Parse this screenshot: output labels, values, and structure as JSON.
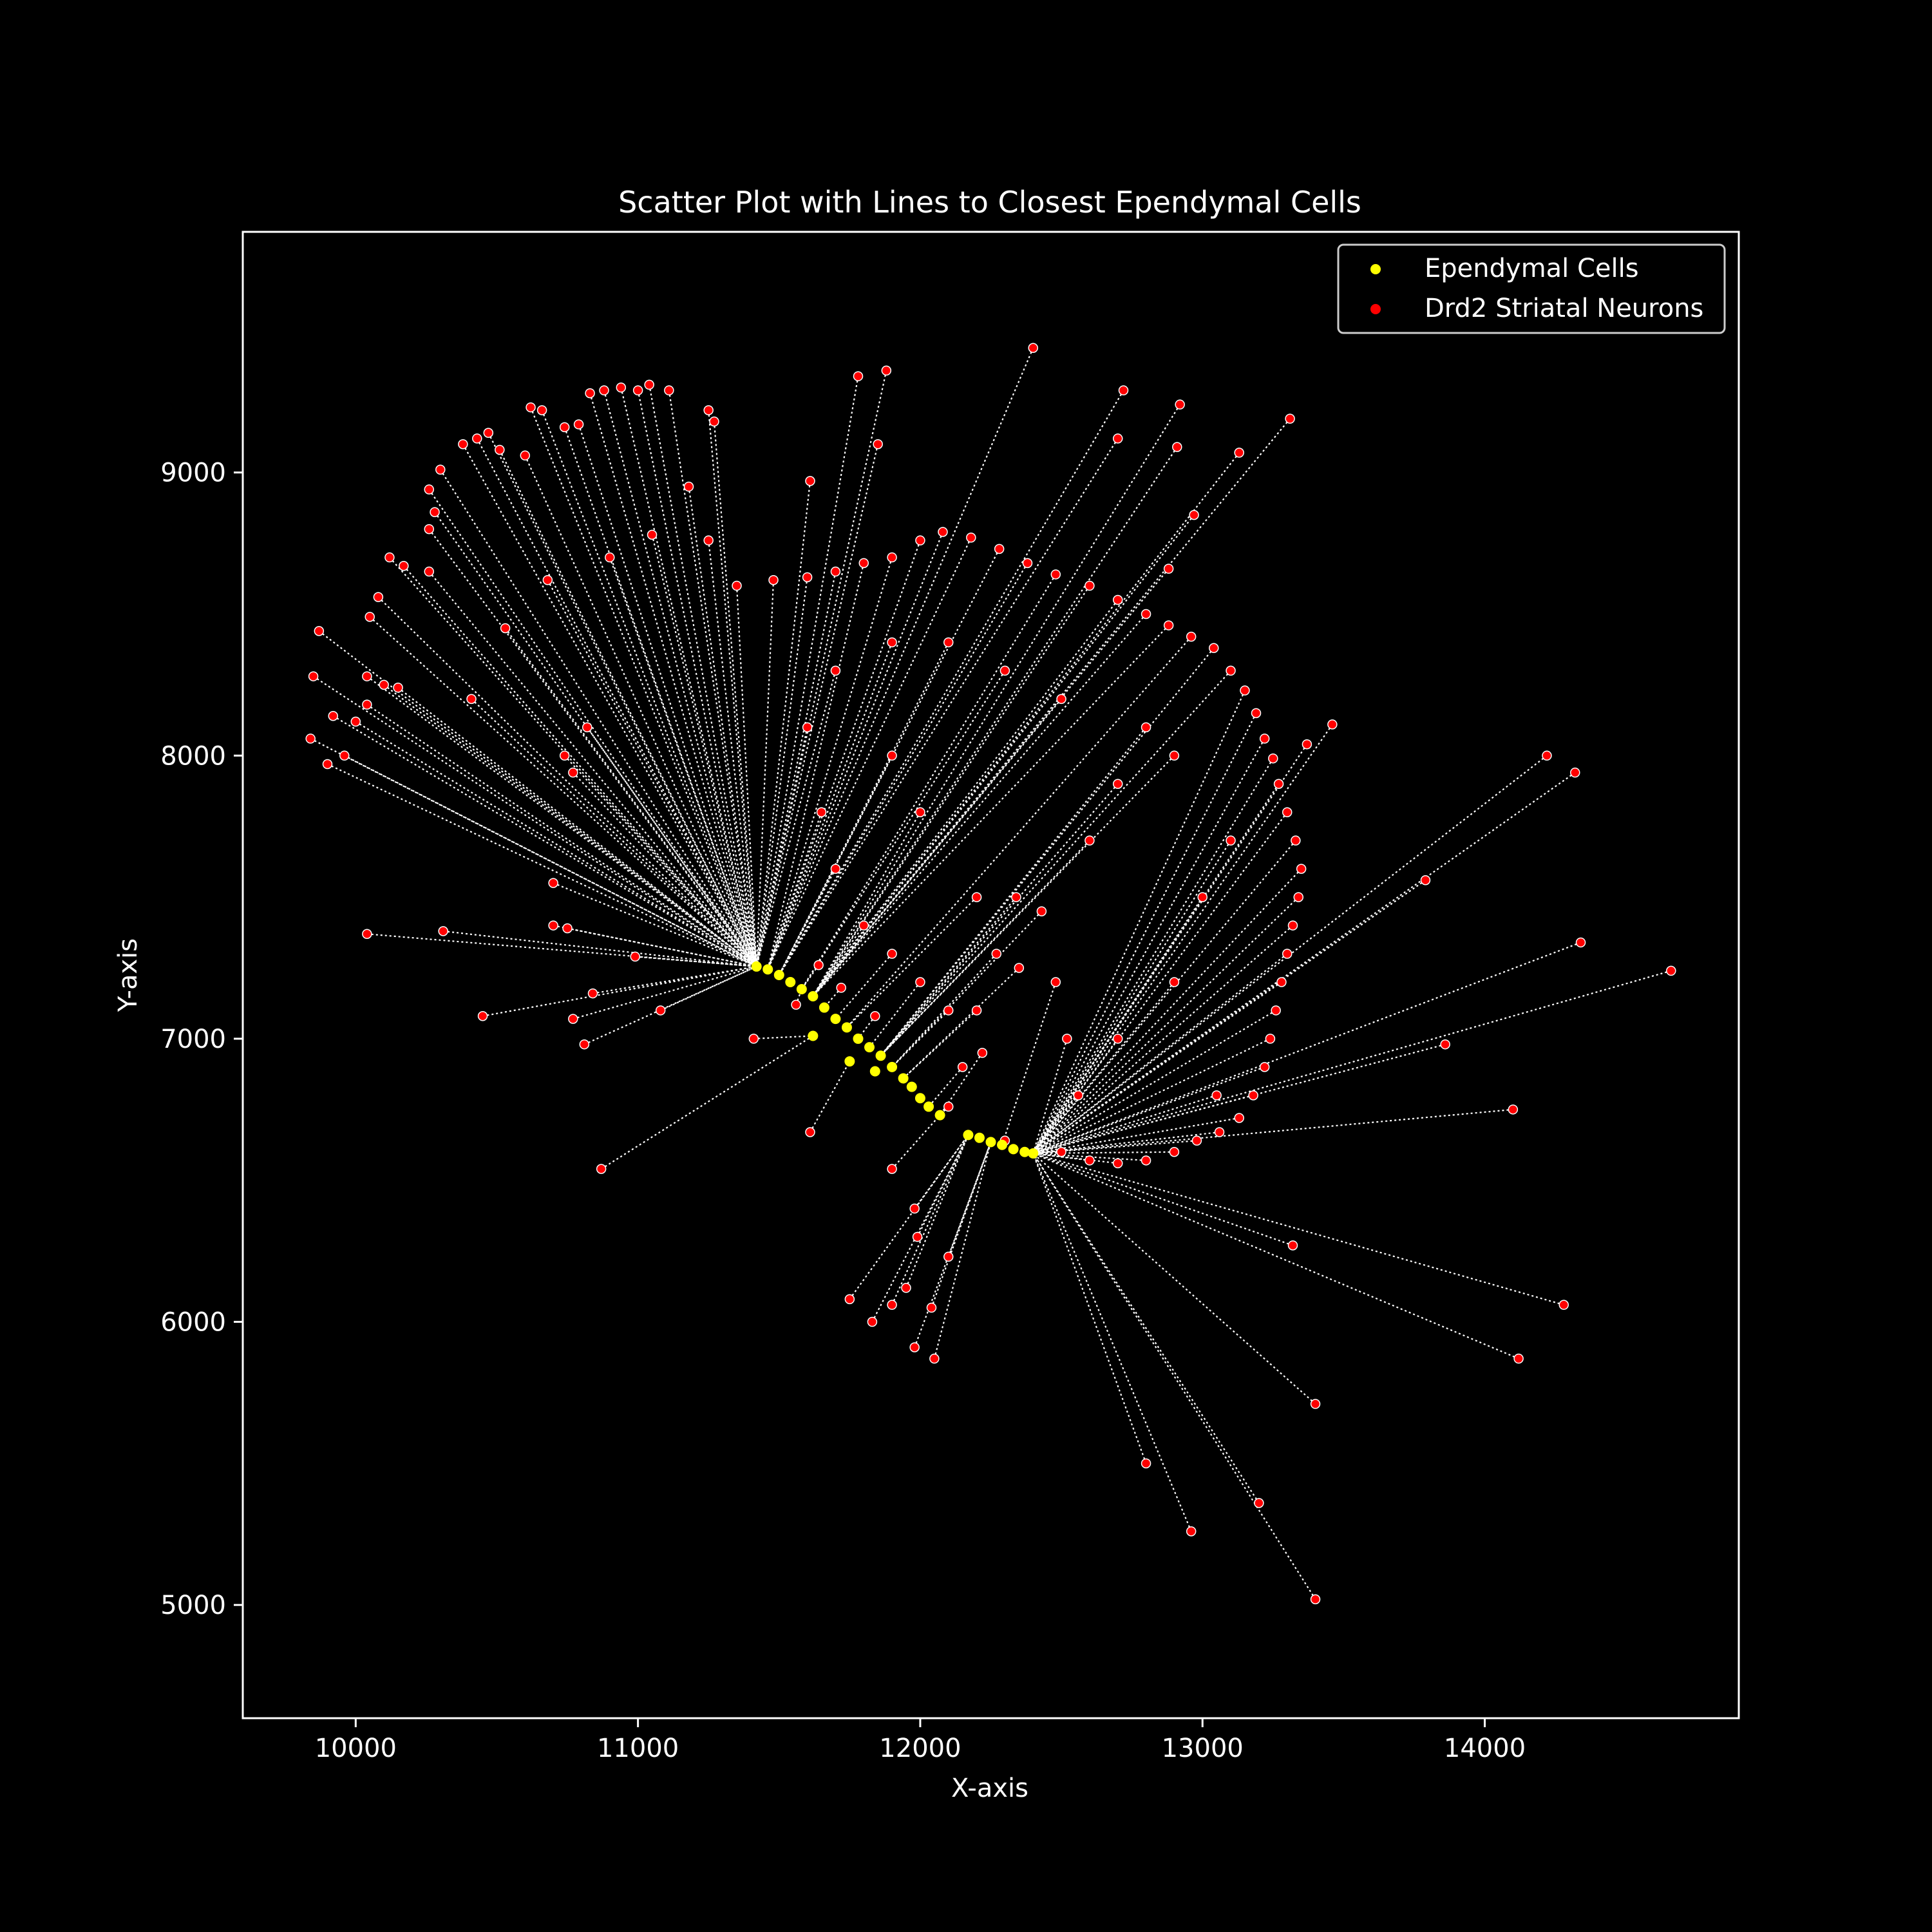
{
  "chart_data": {
    "type": "scatter",
    "title": "Scatter Plot with Lines to Closest Ependymal Cells",
    "xlabel": "X-axis",
    "ylabel": "Y-axis",
    "xlim": [
      9600,
      14900
    ],
    "ylim": [
      4600,
      9850
    ],
    "xticks": [
      10000,
      11000,
      12000,
      13000,
      14000
    ],
    "yticks": [
      5000,
      6000,
      7000,
      8000,
      9000
    ],
    "grid": false,
    "legend_position": "top-right",
    "colors": {
      "background": "#000000",
      "foreground": "#ffffff",
      "ependymal": "#ffff00",
      "neuron": "#ff0000",
      "connector": "#ffffff"
    },
    "series": [
      {
        "name": "Ependymal Cells",
        "color": "#ffff00",
        "points": [
          [
            11420,
            7255
          ],
          [
            11460,
            7245
          ],
          [
            11500,
            7225
          ],
          [
            11540,
            7200
          ],
          [
            11580,
            7175
          ],
          [
            11620,
            7150
          ],
          [
            11660,
            7110
          ],
          [
            11700,
            7070
          ],
          [
            11740,
            7040
          ],
          [
            11780,
            7000
          ],
          [
            11820,
            6970
          ],
          [
            11860,
            6940
          ],
          [
            11900,
            6900
          ],
          [
            11940,
            6860
          ],
          [
            11970,
            6830
          ],
          [
            12000,
            6790
          ],
          [
            12030,
            6760
          ],
          [
            12070,
            6730
          ],
          [
            11620,
            7010
          ],
          [
            11750,
            6920
          ],
          [
            11840,
            6885
          ],
          [
            12170,
            6660
          ],
          [
            12210,
            6650
          ],
          [
            12250,
            6635
          ],
          [
            12290,
            6625
          ],
          [
            12330,
            6610
          ],
          [
            12370,
            6600
          ],
          [
            12400,
            6595
          ]
        ]
      },
      {
        "name": "Drd2 Striatal Neurons",
        "color": "#ff0000",
        "points": [
          [
            12400,
            9440
          ],
          [
            11880,
            9360
          ],
          [
            11780,
            9340
          ],
          [
            12720,
            9290
          ],
          [
            12920,
            9240
          ],
          [
            13310,
            9190
          ],
          [
            12700,
            9120
          ],
          [
            12910,
            9090
          ],
          [
            11850,
            9100
          ],
          [
            13130,
            9070
          ],
          [
            11610,
            8970
          ],
          [
            12970,
            8850
          ],
          [
            12880,
            8660
          ],
          [
            13460,
            8110
          ],
          [
            13370,
            8040
          ],
          [
            14220,
            8000
          ],
          [
            14320,
            7940
          ],
          [
            13790,
            7560
          ],
          [
            14340,
            7340
          ],
          [
            14660,
            7240
          ],
          [
            13860,
            6980
          ],
          [
            14100,
            6750
          ],
          [
            13320,
            6270
          ],
          [
            14280,
            6060
          ],
          [
            14120,
            5870
          ],
          [
            13400,
            5710
          ],
          [
            12800,
            5500
          ],
          [
            13200,
            5360
          ],
          [
            12960,
            5260
          ],
          [
            13400,
            5020
          ],
          [
            12050,
            5870
          ],
          [
            11980,
            5910
          ],
          [
            11750,
            6080
          ],
          [
            11830,
            6000
          ],
          [
            11900,
            6060
          ],
          [
            11950,
            6120
          ],
          [
            12040,
            6050
          ],
          [
            12100,
            6230
          ],
          [
            11990,
            6300
          ],
          [
            11980,
            6400
          ],
          [
            11900,
            6540
          ],
          [
            11610,
            6670
          ],
          [
            10870,
            6540
          ],
          [
            11410,
            7000
          ],
          [
            10810,
            6980
          ],
          [
            10450,
            7080
          ],
          [
            10770,
            7070
          ],
          [
            11080,
            7100
          ],
          [
            10840,
            7160
          ],
          [
            10040,
            7370
          ],
          [
            10310,
            7380
          ],
          [
            10700,
            7400
          ],
          [
            10750,
            7390
          ],
          [
            10990,
            7290
          ],
          [
            10700,
            7550
          ],
          [
            10770,
            7940
          ],
          [
            10740,
            8000
          ],
          [
            9840,
            8060
          ],
          [
            9900,
            7970
          ],
          [
            9960,
            8000
          ],
          [
            9850,
            8280
          ],
          [
            9920,
            8140
          ],
          [
            10000,
            8120
          ],
          [
            10040,
            8180
          ],
          [
            9870,
            8440
          ],
          [
            10040,
            8280
          ],
          [
            10100,
            8250
          ],
          [
            10150,
            8240
          ],
          [
            10050,
            8490
          ],
          [
            10080,
            8560
          ],
          [
            10120,
            8700
          ],
          [
            10170,
            8670
          ],
          [
            10260,
            8800
          ],
          [
            10280,
            8860
          ],
          [
            10260,
            8940
          ],
          [
            10300,
            9010
          ],
          [
            10380,
            9100
          ],
          [
            10430,
            9120
          ],
          [
            10470,
            9140
          ],
          [
            10510,
            9080
          ],
          [
            10600,
            9060
          ],
          [
            10620,
            9230
          ],
          [
            10660,
            9220
          ],
          [
            10740,
            9160
          ],
          [
            10790,
            9170
          ],
          [
            10830,
            9280
          ],
          [
            10880,
            9290
          ],
          [
            10940,
            9300
          ],
          [
            11000,
            9290
          ],
          [
            11040,
            9310
          ],
          [
            11110,
            9290
          ],
          [
            11250,
            9220
          ],
          [
            11270,
            9180
          ],
          [
            11180,
            8950
          ],
          [
            11250,
            8760
          ],
          [
            10530,
            8450
          ],
          [
            10680,
            8620
          ],
          [
            10820,
            8100
          ],
          [
            10410,
            8200
          ],
          [
            10260,
            8650
          ],
          [
            10900,
            8700
          ],
          [
            11050,
            8780
          ],
          [
            11350,
            8600
          ],
          [
            11480,
            8620
          ],
          [
            11600,
            8630
          ],
          [
            11700,
            8650
          ],
          [
            11800,
            8680
          ],
          [
            11900,
            8700
          ],
          [
            12000,
            8760
          ],
          [
            12080,
            8790
          ],
          [
            12180,
            8770
          ],
          [
            12280,
            8730
          ],
          [
            12380,
            8680
          ],
          [
            12480,
            8640
          ],
          [
            12600,
            8600
          ],
          [
            12700,
            8550
          ],
          [
            12800,
            8500
          ],
          [
            12880,
            8460
          ],
          [
            12960,
            8420
          ],
          [
            13040,
            8380
          ],
          [
            13100,
            8300
          ],
          [
            13150,
            8230
          ],
          [
            13190,
            8150
          ],
          [
            13220,
            8060
          ],
          [
            13250,
            7990
          ],
          [
            13270,
            7900
          ],
          [
            13300,
            7800
          ],
          [
            13330,
            7700
          ],
          [
            13350,
            7600
          ],
          [
            13340,
            7500
          ],
          [
            13320,
            7400
          ],
          [
            13300,
            7300
          ],
          [
            13280,
            7200
          ],
          [
            13260,
            7100
          ],
          [
            13240,
            7000
          ],
          [
            13220,
            6900
          ],
          [
            13180,
            6800
          ],
          [
            13130,
            6720
          ],
          [
            13060,
            6670
          ],
          [
            12980,
            6640
          ],
          [
            12900,
            6600
          ],
          [
            12800,
            6570
          ],
          [
            12700,
            6560
          ],
          [
            12600,
            6570
          ],
          [
            12500,
            6600
          ],
          [
            12560,
            6800
          ],
          [
            12520,
            7000
          ],
          [
            12480,
            7200
          ],
          [
            12430,
            7450
          ],
          [
            12340,
            7500
          ],
          [
            12270,
            7300
          ],
          [
            12200,
            7100
          ],
          [
            12150,
            6900
          ],
          [
            12100,
            6760
          ],
          [
            12220,
            6950
          ],
          [
            12350,
            7250
          ],
          [
            12600,
            7700
          ],
          [
            12700,
            7900
          ],
          [
            12800,
            8100
          ],
          [
            12500,
            8200
          ],
          [
            12300,
            8300
          ],
          [
            12100,
            8400
          ],
          [
            11900,
            8400
          ],
          [
            11700,
            8300
          ],
          [
            11600,
            8100
          ],
          [
            11650,
            7800
          ],
          [
            11700,
            7600
          ],
          [
            11800,
            7400
          ],
          [
            11900,
            7300
          ],
          [
            12000,
            7200
          ],
          [
            12100,
            7100
          ],
          [
            12200,
            7500
          ],
          [
            12000,
            7800
          ],
          [
            11900,
            8000
          ],
          [
            12700,
            7000
          ],
          [
            12900,
            7200
          ],
          [
            13000,
            7500
          ],
          [
            13100,
            7700
          ],
          [
            12900,
            8000
          ],
          [
            13050,
            6800
          ],
          [
            11560,
            7120
          ],
          [
            11640,
            7260
          ],
          [
            11720,
            7180
          ],
          [
            11840,
            7080
          ],
          [
            12300,
            6640
          ]
        ]
      }
    ]
  }
}
